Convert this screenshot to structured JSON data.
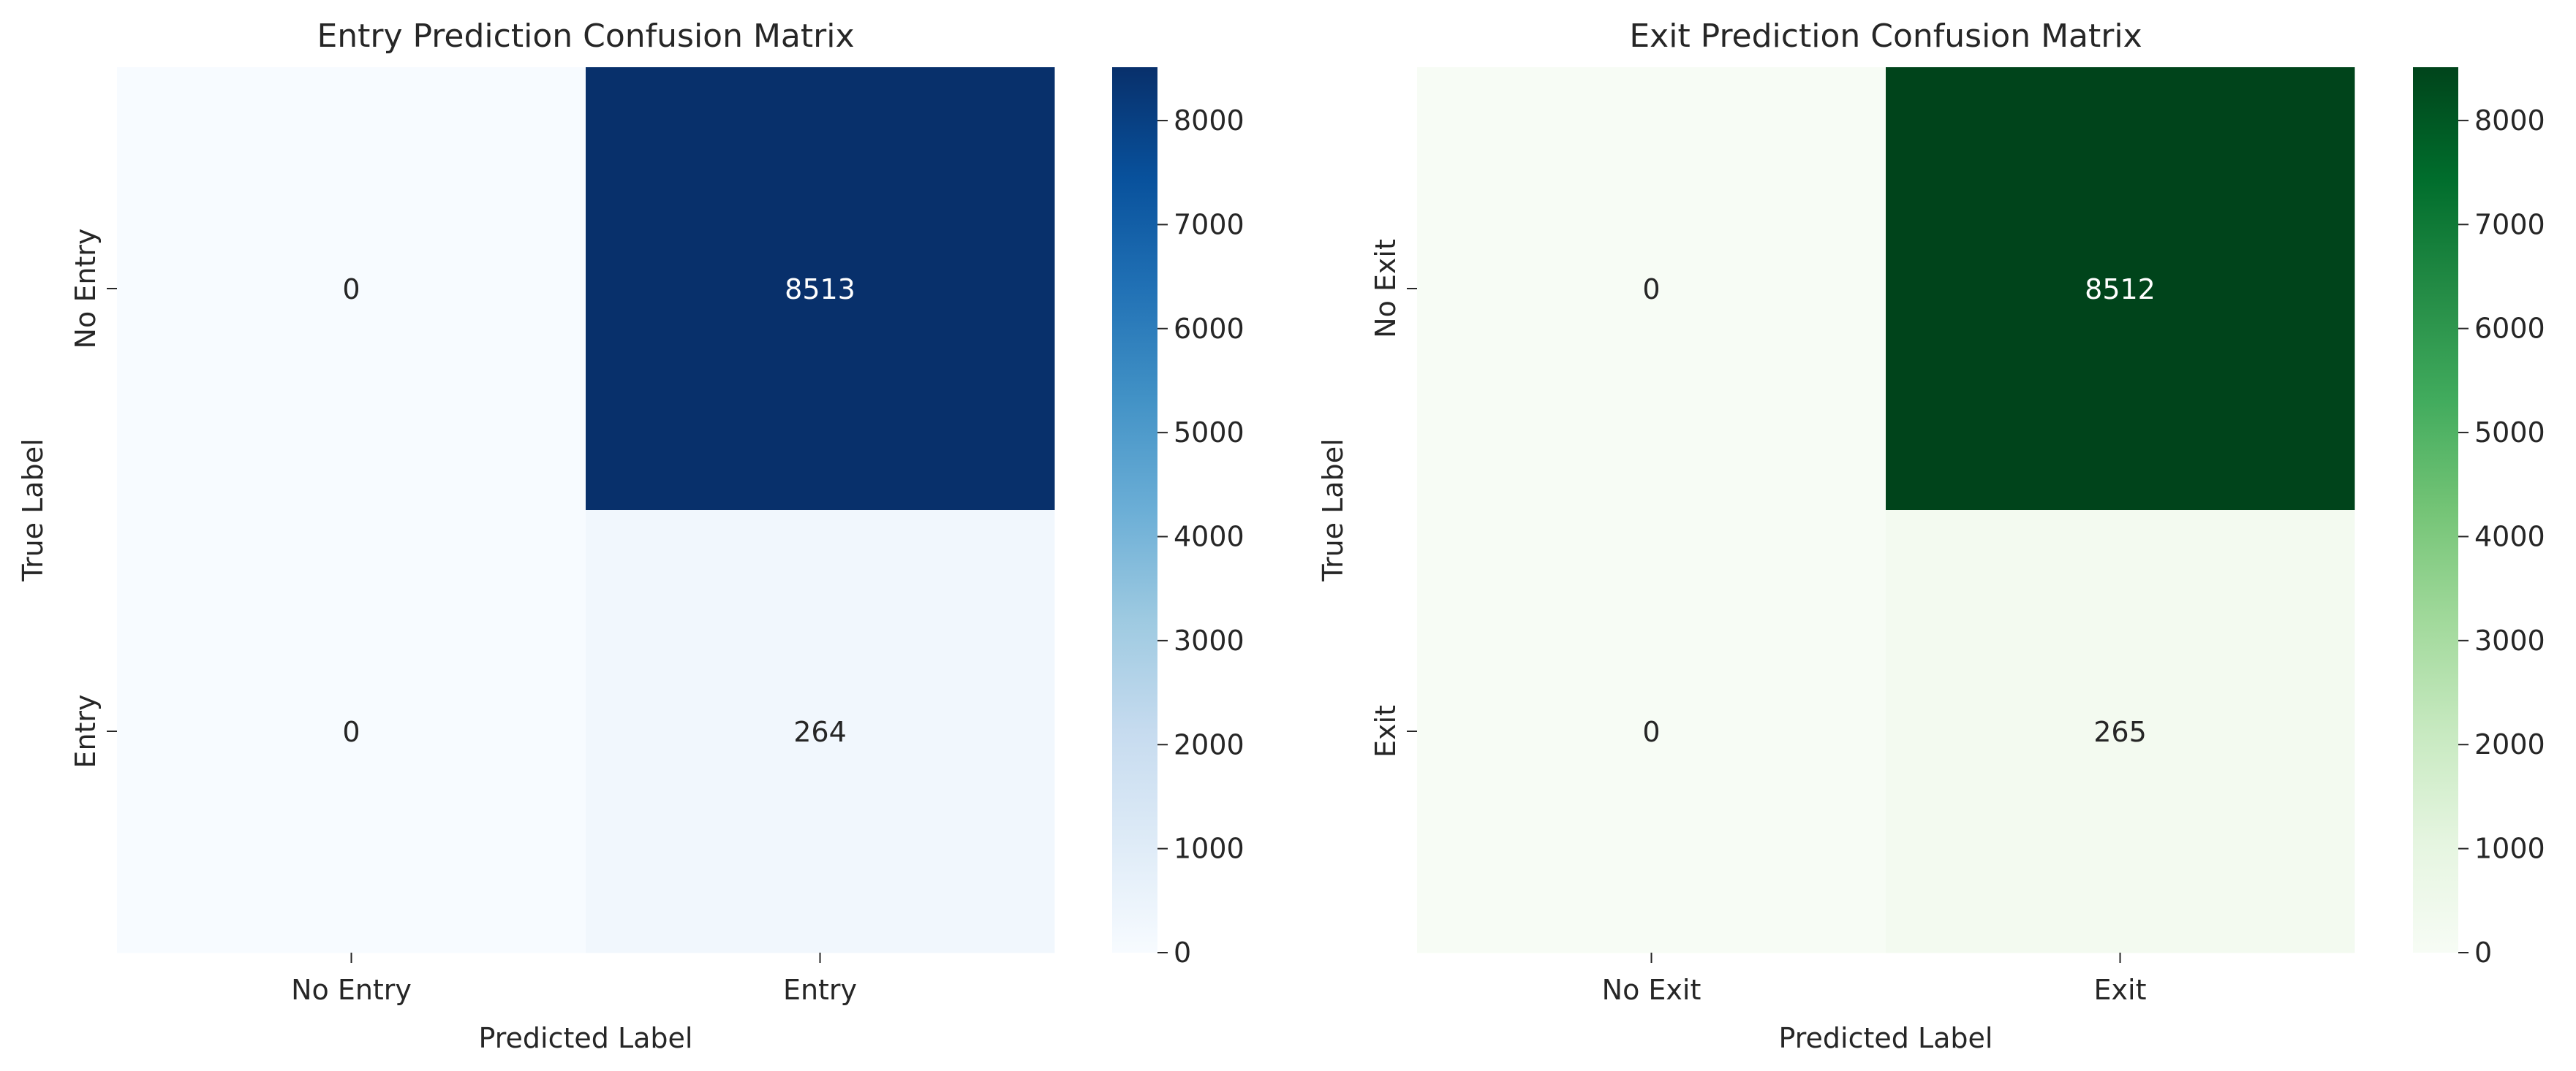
{
  "chart_data": [
    {
      "type": "heatmap",
      "title": "Entry Prediction Confusion Matrix",
      "xlabel": "Predicted Label",
      "ylabel": "True Label",
      "x_categories": [
        "No Entry",
        "Entry"
      ],
      "y_categories": [
        "No Entry",
        "Entry"
      ],
      "values": [
        [
          0,
          8513
        ],
        [
          0,
          264
        ]
      ],
      "colormap": "Blues",
      "color_range": [
        0,
        8513
      ],
      "colorbar_ticks": [
        0,
        1000,
        2000,
        3000,
        4000,
        5000,
        6000,
        7000,
        8000
      ],
      "grid": false,
      "colorbar_position": "right"
    },
    {
      "type": "heatmap",
      "title": "Exit Prediction Confusion Matrix",
      "xlabel": "Predicted Label",
      "ylabel": "True Label",
      "x_categories": [
        "No Exit",
        "Exit"
      ],
      "y_categories": [
        "No Exit",
        "Exit"
      ],
      "values": [
        [
          0,
          8512
        ],
        [
          0,
          265
        ]
      ],
      "colormap": "Greens",
      "color_range": [
        0,
        8512
      ],
      "colorbar_ticks": [
        0,
        1000,
        2000,
        3000,
        4000,
        5000,
        6000,
        7000,
        8000
      ],
      "grid": false,
      "colorbar_position": "right"
    }
  ],
  "colors": {
    "blues": [
      "#f7fbff",
      "#deebf7",
      "#c6dbef",
      "#9ecae1",
      "#6baed6",
      "#4292c6",
      "#2171b5",
      "#08519c",
      "#08306b"
    ],
    "greens": [
      "#f7fcf5",
      "#e5f5e0",
      "#c7e9c0",
      "#a1d99b",
      "#74c476",
      "#41ab5d",
      "#238b45",
      "#006d2c",
      "#00441b"
    ],
    "text_dark": "#262626",
    "text_light": "#ffffff",
    "axis": "#262626"
  }
}
